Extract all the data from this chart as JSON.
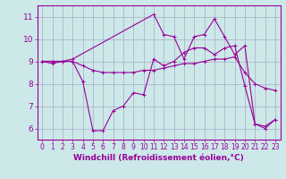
{
  "xlabel": "Windchill (Refroidissement éolien,°C)",
  "ylabel": "",
  "bg_color": "#cce8e8",
  "line_color": "#990099",
  "grid_color": "#aaaacc",
  "xlim": [
    -0.5,
    23.5
  ],
  "ylim": [
    5.5,
    11.5
  ],
  "yticks": [
    6,
    7,
    8,
    9,
    10,
    11
  ],
  "xticks": [
    0,
    1,
    2,
    3,
    4,
    5,
    6,
    7,
    8,
    9,
    10,
    11,
    12,
    13,
    14,
    15,
    16,
    17,
    18,
    19,
    20,
    21,
    22,
    23
  ],
  "line1_x": [
    0,
    1,
    2,
    3,
    4,
    5,
    6,
    7,
    8,
    9,
    10,
    11,
    12,
    13,
    14,
    15,
    16,
    17,
    18,
    19,
    20,
    21,
    22,
    23
  ],
  "line1_y": [
    9.0,
    8.9,
    9.0,
    9.0,
    8.1,
    5.9,
    5.9,
    6.8,
    7.0,
    7.6,
    7.5,
    9.1,
    8.8,
    9.0,
    9.4,
    9.6,
    9.6,
    9.3,
    9.6,
    9.7,
    7.9,
    6.2,
    6.0,
    6.4
  ],
  "line2_x": [
    0,
    1,
    2,
    3,
    4,
    5,
    6,
    7,
    8,
    9,
    10,
    11,
    12,
    13,
    14,
    15,
    16,
    17,
    18,
    19,
    20,
    21,
    22,
    23
  ],
  "line2_y": [
    9.0,
    9.0,
    9.0,
    9.0,
    8.8,
    8.6,
    8.5,
    8.5,
    8.5,
    8.5,
    8.6,
    8.6,
    8.7,
    8.8,
    8.9,
    8.9,
    9.0,
    9.1,
    9.1,
    9.2,
    8.5,
    8.0,
    7.8,
    7.7
  ],
  "line3_x": [
    0,
    1,
    2,
    3,
    11,
    12,
    13,
    14,
    15,
    16,
    17,
    18,
    19,
    20,
    21,
    22,
    23
  ],
  "line3_y": [
    9.0,
    9.0,
    9.0,
    9.1,
    11.1,
    10.2,
    10.1,
    9.1,
    10.1,
    10.2,
    10.9,
    10.1,
    9.3,
    9.7,
    6.2,
    6.1,
    6.4
  ],
  "marker": "+",
  "markersize": 3,
  "linewidth": 0.8,
  "tick_fontsize": 5.5,
  "xlabel_fontsize": 6.5
}
